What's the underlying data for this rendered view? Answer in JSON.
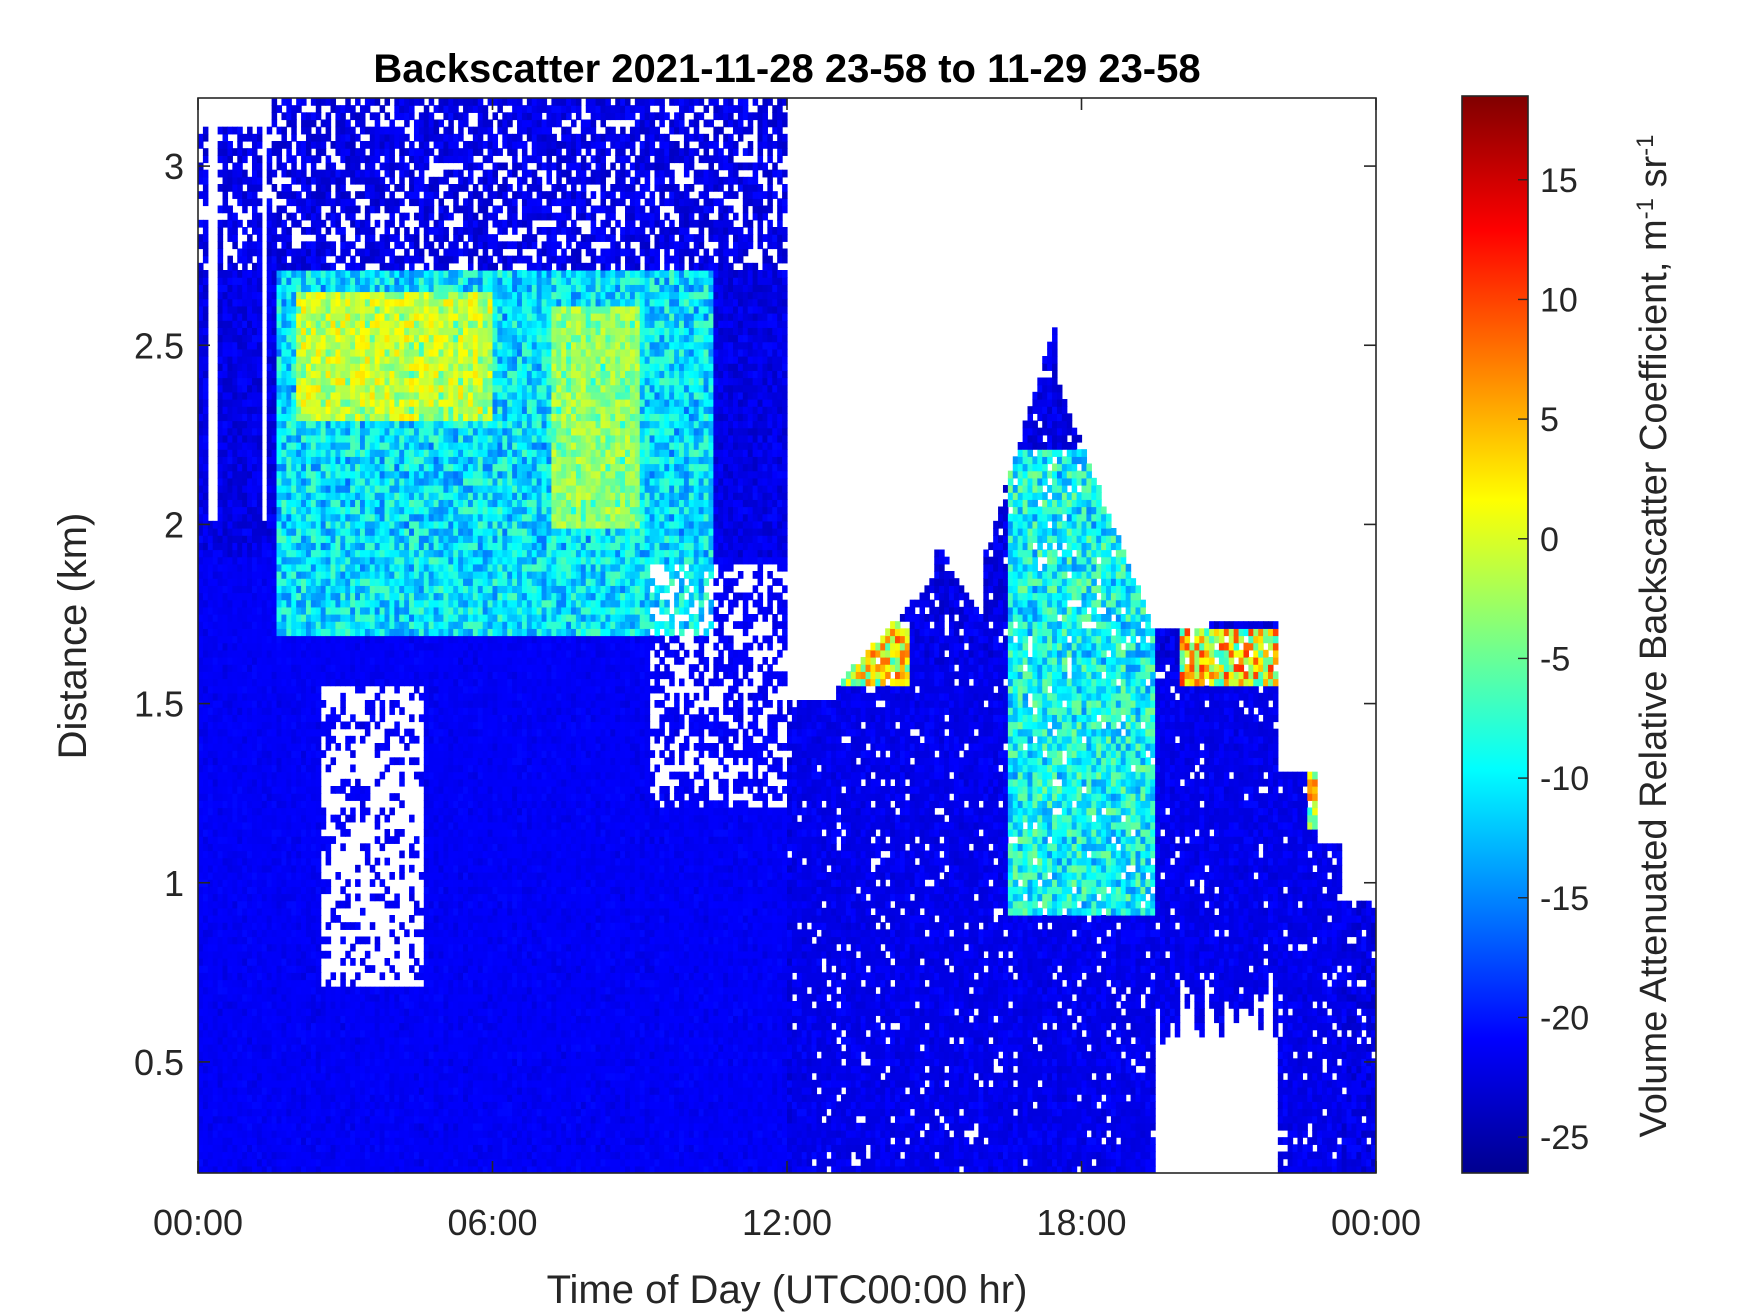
{
  "chart_data": {
    "type": "heatmap",
    "title": "Backscatter 2021-11-28 23-58 to 11-29 23-58",
    "xlabel": "Time of Day (UTC00:00 hr)",
    "ylabel": "Distance (km)",
    "x_ticks": [
      "00:00",
      "06:00",
      "12:00",
      "18:00",
      "00:00"
    ],
    "x_tick_hours": [
      0,
      6,
      12,
      18,
      24
    ],
    "xlim_hours": [
      0,
      24
    ],
    "y_ticks": [
      "0.5",
      "1",
      "1.5",
      "2",
      "2.5",
      "3"
    ],
    "y_tick_values": [
      0.5,
      1,
      1.5,
      2,
      2.5,
      3
    ],
    "ylim": [
      0.19,
      3.19
    ],
    "colorbar": {
      "label": "Volume Attenuated Relative Backscatter Coefficient, m",
      "label_sup1": "-1",
      "label_mid": " sr",
      "label_sup2": "-1",
      "ticks": [
        "15",
        "10",
        "5",
        "0",
        "-5",
        "-10",
        "-15",
        "-20",
        "-25"
      ],
      "tick_values": [
        15,
        10,
        5,
        0,
        -5,
        -10,
        -15,
        -20,
        -25
      ],
      "range": [
        -26.5,
        18.5
      ],
      "colormap": "jet"
    },
    "features": [
      {
        "t0": 0,
        "t1": 12,
        "z0": 0.19,
        "z1": 1.9,
        "level": -21
      },
      {
        "t0": 1.6,
        "t1": 10.5,
        "z0": 1.7,
        "z1": 2.7,
        "level": -6
      },
      {
        "t0": 2.0,
        "t1": 6.0,
        "z0": 2.3,
        "z1": 2.65,
        "level": 3
      },
      {
        "t0": 7.2,
        "t1": 9.0,
        "z0": 2.0,
        "z1": 2.6,
        "level": 0
      },
      {
        "t0": 12.1,
        "t1": 23.3,
        "z0": 0.19,
        "z1": 1.6,
        "level": -22
      },
      {
        "t0": 16.5,
        "t1": 19.5,
        "z0": 0.9,
        "z1": 2.2,
        "level": -4
      },
      {
        "t0": 13.1,
        "t1": 14.5,
        "z0": 1.55,
        "z1": 1.72,
        "level": 10
      },
      {
        "t0": 20.0,
        "t1": 22.3,
        "z0": 1.55,
        "z1": 1.7,
        "level": 11
      },
      {
        "t0": 22.6,
        "t1": 23.0,
        "z0": 1.15,
        "z1": 1.3,
        "level": 10
      }
    ]
  }
}
